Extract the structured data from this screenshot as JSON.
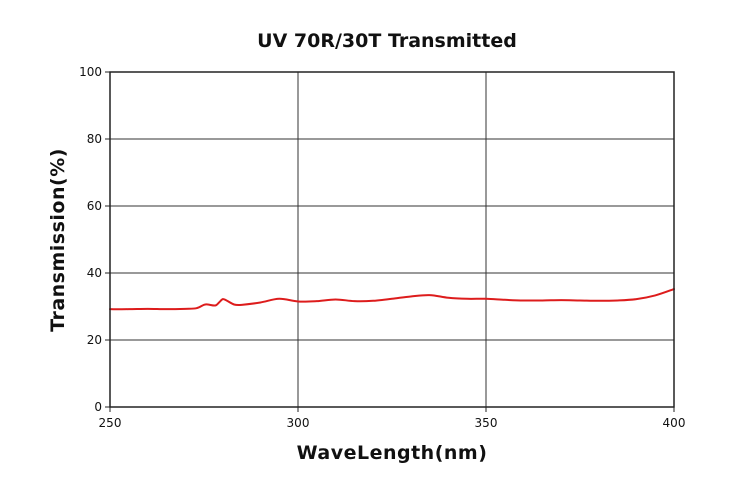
{
  "chart_data": {
    "type": "line",
    "title": "UV 70R/30T Transmitted",
    "xlabel": "WaveLength(nm)",
    "ylabel": "Transmission(%)",
    "xlim": [
      250,
      400
    ],
    "ylim": [
      0,
      100
    ],
    "x_ticks": [
      250,
      300,
      350,
      400
    ],
    "y_ticks": [
      0,
      20,
      40,
      60,
      80,
      100
    ],
    "grid": true,
    "legend": "none",
    "series": [
      {
        "color": "#dd1c1c",
        "x": [
          250,
          255,
          260,
          265,
          270,
          273,
          275,
          276,
          278,
          279,
          280,
          281,
          283,
          285,
          290,
          295,
          300,
          305,
          310,
          315,
          320,
          325,
          330,
          335,
          340,
          345,
          350,
          355,
          360,
          365,
          370,
          375,
          380,
          385,
          390,
          395,
          400
        ],
        "y": [
          29.2,
          29.2,
          29.3,
          29.2,
          29.3,
          29.5,
          30.5,
          30.6,
          30.3,
          31.2,
          32.2,
          31.8,
          30.6,
          30.5,
          31.2,
          32.3,
          31.5,
          31.6,
          32.1,
          31.6,
          31.7,
          32.3,
          33.0,
          33.4,
          32.6,
          32.3,
          32.3,
          32.0,
          31.8,
          31.8,
          31.9,
          31.8,
          31.7,
          31.8,
          32.2,
          33.3,
          35.2
        ]
      }
    ]
  }
}
